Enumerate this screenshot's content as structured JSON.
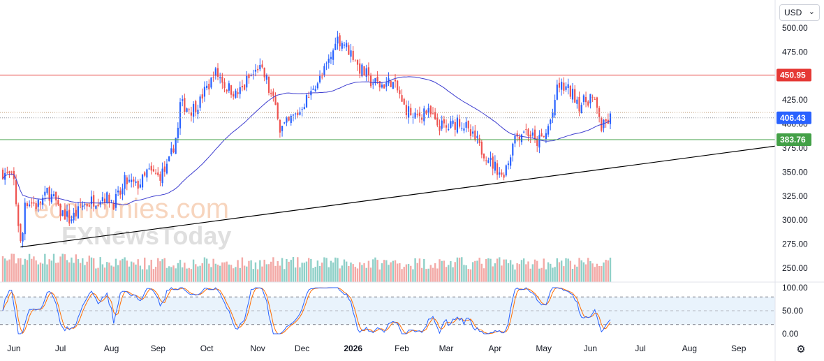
{
  "currency": {
    "label": "USD",
    "chevron_icon": "chevron-down-icon"
  },
  "settings_icon": "gear-icon",
  "watermark": {
    "line1": "economies.com",
    "line2": "FXNewsToday"
  },
  "colors": {
    "up": "#2962ff",
    "down": "#ef5350",
    "vol_up": "#8fd0c8",
    "vol_down": "#f3a9a6",
    "ma": "#3f3fd0",
    "resistance": "#e53935",
    "support": "#43a047",
    "trend": "#000000",
    "k_line": "#2962ff",
    "d_line": "#ff6d00",
    "tag_price": "#2962ff",
    "tag_res": "#e53935",
    "tag_sup": "#43a047"
  },
  "price_axis": {
    "ticks": [
      "500.00",
      "475.00",
      "450.00",
      "425.00",
      "400.00",
      "375.00",
      "350.00",
      "325.00",
      "300.00",
      "275.00",
      "250.00"
    ],
    "min": 240,
    "max": 505
  },
  "oscillator_axis": {
    "ticks": [
      "100.00",
      "50.00",
      "0.00"
    ],
    "overbought": 80,
    "oversold": 20
  },
  "price_tags": {
    "resistance": "450.95",
    "current": "406.43",
    "support": "383.76"
  },
  "time_axis": [
    {
      "label": "Jun",
      "bold": false
    },
    {
      "label": "Jul",
      "bold": false
    },
    {
      "label": "Aug",
      "bold": false
    },
    {
      "label": "Sep",
      "bold": false
    },
    {
      "label": "Oct",
      "bold": false
    },
    {
      "label": "Nov",
      "bold": false
    },
    {
      "label": "Dec",
      "bold": false
    },
    {
      "label": "2026",
      "bold": true
    },
    {
      "label": "Feb",
      "bold": false
    },
    {
      "label": "Mar",
      "bold": false
    },
    {
      "label": "Apr",
      "bold": false
    },
    {
      "label": "May",
      "bold": false
    },
    {
      "label": "Jun",
      "bold": false
    },
    {
      "label": "Jul",
      "bold": false
    },
    {
      "label": "Aug",
      "bold": false
    },
    {
      "label": "Sep",
      "bold": false
    }
  ],
  "chart_data": {
    "type": "line",
    "description_series": [
      {
        "name": "",
        "points": [
          [
            "2025-05-26",
            350
          ],
          [
            "2025-06-02",
            340
          ],
          [
            "2025-06-05",
            275
          ],
          [
            "2025-06-09",
            320
          ],
          [
            "2025-06-16",
            315
          ],
          [
            "2025-06-23",
            330
          ],
          [
            "2025-06-30",
            310
          ],
          [
            "2025-07-07",
            300
          ],
          [
            "2025-07-14",
            315
          ],
          [
            "2025-07-21",
            320
          ],
          [
            "2025-07-28",
            325
          ],
          [
            "2025-08-04",
            318
          ],
          [
            "2025-08-11",
            340
          ],
          [
            "2025-08-18",
            335
          ],
          [
            "2025-08-25",
            350
          ],
          [
            "2025-09-01",
            345
          ],
          [
            "2025-09-08",
            360
          ],
          [
            "2025-09-15",
            420
          ],
          [
            "2025-09-22",
            415
          ],
          [
            "2025-09-29",
            430
          ],
          [
            "2025-10-06",
            455
          ],
          [
            "2025-10-13",
            440
          ],
          [
            "2025-10-20",
            430
          ],
          [
            "2025-10-27",
            445
          ],
          [
            "2025-11-03",
            460
          ],
          [
            "2025-11-10",
            435
          ],
          [
            "2025-11-17",
            395
          ],
          [
            "2025-11-24",
            405
          ],
          [
            "2025-12-01",
            420
          ],
          [
            "2025-12-08",
            440
          ],
          [
            "2025-12-15",
            455
          ],
          [
            "2025-12-22",
            490
          ],
          [
            "2025-12-29",
            480
          ],
          [
            "2026-01-05",
            460
          ],
          [
            "2026-01-12",
            445
          ],
          [
            "2026-01-19",
            440
          ],
          [
            "2026-01-26",
            445
          ],
          [
            "2026-02-02",
            420
          ],
          [
            "2026-02-09",
            405
          ],
          [
            "2026-02-16",
            415
          ],
          [
            "2026-02-23",
            400
          ],
          [
            "2026-03-02",
            395
          ],
          [
            "2026-03-09",
            405
          ],
          [
            "2026-03-16",
            390
          ],
          [
            "2026-03-23",
            375
          ],
          [
            "2026-03-30",
            360
          ],
          [
            "2026-04-06",
            345
          ],
          [
            "2026-04-13",
            385
          ],
          [
            "2026-04-20",
            395
          ],
          [
            "2026-04-27",
            380
          ],
          [
            "2026-05-04",
            390
          ],
          [
            "2026-05-11",
            440
          ],
          [
            "2026-05-18",
            435
          ],
          [
            "2026-05-25",
            420
          ],
          [
            "2026-06-01",
            430
          ],
          [
            "2026-06-08",
            395
          ],
          [
            "2026-06-12",
            406.43
          ]
        ]
      }
    ],
    "resistance": 450.95,
    "support": 383.76,
    "last_price": 406.43,
    "ylim": [
      240,
      505
    ],
    "oscillator_ylim": [
      0,
      100
    ],
    "oscillator_levels": [
      20,
      80
    ]
  }
}
